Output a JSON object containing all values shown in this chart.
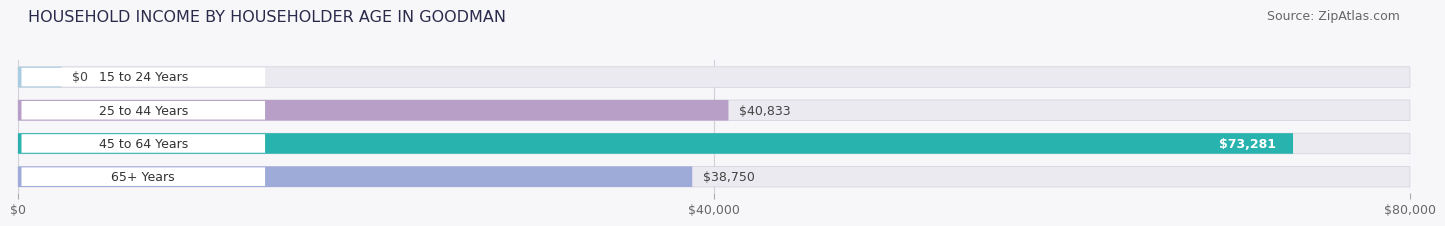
{
  "title": "HOUSEHOLD INCOME BY HOUSEHOLDER AGE IN GOODMAN",
  "source": "Source: ZipAtlas.com",
  "categories": [
    "15 to 24 Years",
    "25 to 44 Years",
    "45 to 64 Years",
    "65+ Years"
  ],
  "values": [
    0,
    40833,
    73281,
    38750
  ],
  "labels": [
    "$0",
    "$40,833",
    "$73,281",
    "$38,750"
  ],
  "bar_colors": [
    "#a8cce0",
    "#b89fc8",
    "#29b3ae",
    "#9eaad8"
  ],
  "bar_bg_color": "#eaeaf0",
  "label_pill_color": "#ffffff",
  "xlim": [
    0,
    80000
  ],
  "xticks": [
    0,
    40000,
    80000
  ],
  "xticklabels": [
    "$0",
    "$40,000",
    "$80,000"
  ],
  "title_fontsize": 11.5,
  "source_fontsize": 9,
  "value_label_fontsize": 9,
  "category_fontsize": 9,
  "xtick_fontsize": 9,
  "background_color": "#f7f7fa",
  "bar_height": 0.62,
  "rounding_size": 0.3,
  "grid_color": "#d0d0d8",
  "grid_linewidth": 0.8,
  "bar_gap": 0.38
}
